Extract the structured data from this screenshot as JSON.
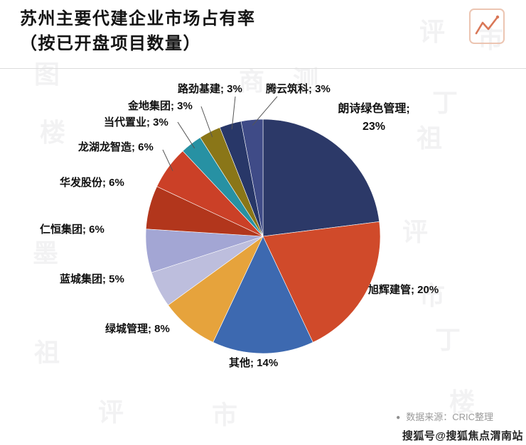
{
  "page": {
    "title_line1": "苏州主要代建企业市场占有率",
    "title_line2": "（按已开盘项目数量）",
    "source_bullet": "●",
    "source_note": "数据来源：CRIC整理",
    "corner_watermark": "搜狐号@搜狐焦点渭南站"
  },
  "icons": {
    "header_icon": "line-chart-icon",
    "icon_stroke_color": "#d97757",
    "icon_frame_color": "#ecc5b2"
  },
  "watermark_chars": [
    "评",
    "市",
    "丁",
    "祖",
    "图",
    "楼",
    "商",
    "测",
    "墨",
    "评",
    "市",
    "丁",
    "祖",
    "楼",
    "市",
    "评"
  ],
  "chart_data": {
    "type": "pie",
    "title": "苏州主要代建企业市场占有率（按已开盘项目数量）",
    "unit": "%",
    "start_angle_deg": 0,
    "direction": "clockwise",
    "legend_position": "outside-labels",
    "slices": [
      {
        "name": "朗诗绿色管理",
        "value": 23,
        "color": "#2c3968",
        "label": "朗诗绿色管理; 23%"
      },
      {
        "name": "旭辉建管",
        "value": 20,
        "color": "#d04a2a",
        "label": "旭辉建管; 20%"
      },
      {
        "name": "其他",
        "value": 14,
        "color": "#3d69b0",
        "label": "其他; 14%"
      },
      {
        "name": "绿城管理",
        "value": 8,
        "color": "#e6a33c",
        "label": "绿城管理; 8%"
      },
      {
        "name": "蓝城集团",
        "value": 5,
        "color": "#bdbedd",
        "label": "蓝城集团; 5%"
      },
      {
        "name": "仁恒集团",
        "value": 6,
        "color": "#a3a6d4",
        "label": "仁恒集团; 6%"
      },
      {
        "name": "华发股份",
        "value": 6,
        "color": "#b2361c",
        "label": "华发股份; 6%"
      },
      {
        "name": "龙湖龙智造",
        "value": 6,
        "color": "#cb4027",
        "label": "龙湖龙智造; 6%"
      },
      {
        "name": "当代置业",
        "value": 3,
        "color": "#2791a3",
        "label": "当代置业; 3%"
      },
      {
        "name": "金地集团",
        "value": 3,
        "color": "#8a7618",
        "label": "金地集团; 3%"
      },
      {
        "name": "路劲基建",
        "value": 3,
        "color": "#283768",
        "label": "路劲基建; 3%"
      },
      {
        "name": "腾云筑科",
        "value": 3,
        "color": "#3f4b87",
        "label": "腾云筑科; 3%"
      }
    ]
  }
}
